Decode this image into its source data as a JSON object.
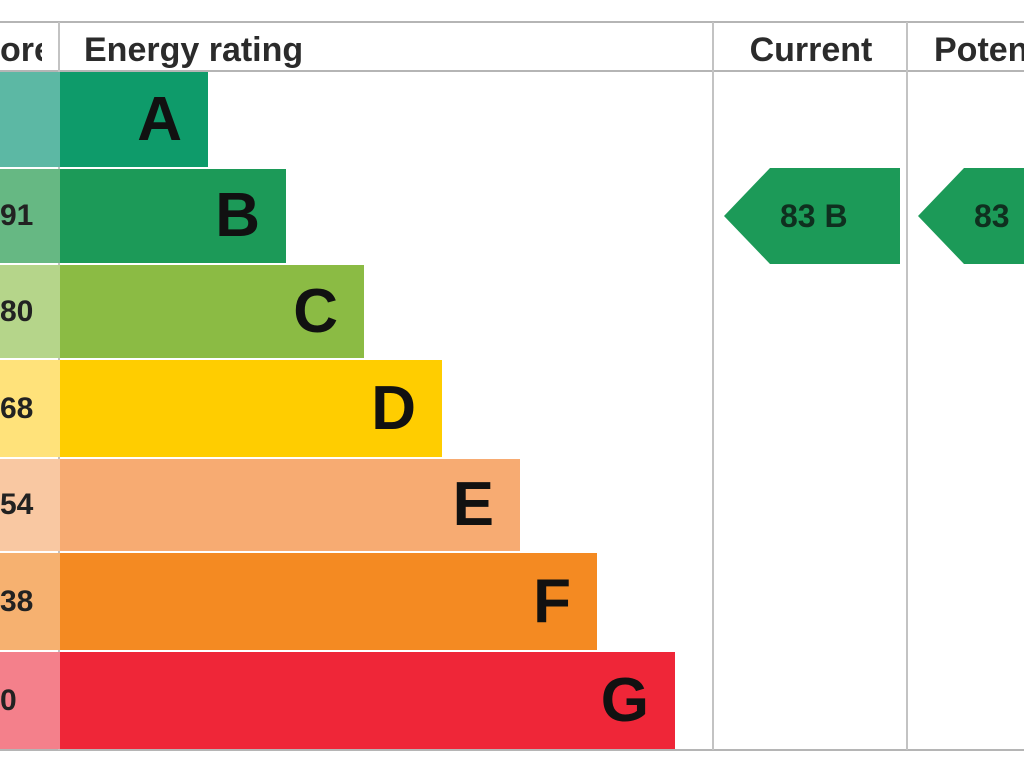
{
  "header": {
    "score": "ore",
    "energy_rating": "Energy rating",
    "current": "Current",
    "potential": "Poten"
  },
  "chart_data": {
    "type": "bar",
    "categories": [
      "A",
      "B",
      "C",
      "D",
      "E",
      "F",
      "G"
    ],
    "bands": [
      {
        "letter": "A",
        "score_label": "",
        "color": "#0e9b6a",
        "score_bg": "#5cb8a4"
      },
      {
        "letter": "B",
        "score_label": "91",
        "color": "#1c9a58",
        "score_bg": "#66b883"
      },
      {
        "letter": "C",
        "score_label": "80",
        "color": "#8bbb44",
        "score_bg": "#b5d58a"
      },
      {
        "letter": "D",
        "score_label": "68",
        "color": "#ffcd00",
        "score_bg": "#ffe27a"
      },
      {
        "letter": "E",
        "score_label": "54",
        "color": "#f7ab72",
        "score_bg": "#f9c8a2"
      },
      {
        "letter": "F",
        "score_label": "38",
        "color": "#f48a22",
        "score_bg": "#f6b170"
      },
      {
        "letter": "G",
        "score_label": "0",
        "color": "#ef2638",
        "score_bg": "#f4808b"
      }
    ],
    "current": {
      "value": 83,
      "band": "B",
      "label": "83  B",
      "color": "#1c9a58"
    },
    "potential": {
      "value": 83,
      "band": "B",
      "label": "83",
      "color": "#1c9a58"
    }
  }
}
